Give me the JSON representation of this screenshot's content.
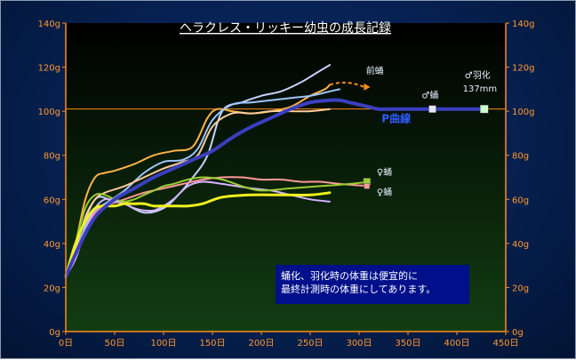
{
  "chart_data": {
    "type": "line",
    "title": "ヘラクレス・リッキー幼虫の成長記録",
    "xlabel": "",
    "ylabel": "",
    "xlim": [
      0,
      450
    ],
    "ylim": [
      0,
      140
    ],
    "x_tick_labels": [
      "0日",
      "50日",
      "100日",
      "150日",
      "200日",
      "250日",
      "300日",
      "350日",
      "400日",
      "450日"
    ],
    "y_tick_labels": [
      "0g",
      "20g",
      "40g",
      "60g",
      "80g",
      "100g",
      "120g",
      "140g"
    ],
    "y_ticks": [
      0,
      20,
      40,
      60,
      80,
      100,
      120,
      140
    ],
    "x_ticks": [
      0,
      50,
      100,
      150,
      200,
      250,
      300,
      350,
      400,
      450
    ],
    "grid": false,
    "reference_line": {
      "y": 101,
      "color": "#ff8c1a"
    },
    "series": [
      {
        "color": "#c8d2ff",
        "width": 2,
        "x": [
          0,
          15,
          30,
          45,
          60,
          80,
          100,
          115,
          130,
          145,
          160,
          180,
          200,
          220,
          240,
          255,
          270
        ],
        "y": [
          25,
          45,
          60,
          60,
          58,
          54,
          56,
          62,
          70,
          80,
          100,
          104,
          107,
          109,
          113,
          117,
          121
        ]
      },
      {
        "color": "#ffb347",
        "width": 2,
        "x": [
          0,
          10,
          20,
          30,
          40,
          50,
          70,
          90,
          110,
          130,
          145,
          155,
          170,
          190,
          210,
          230,
          250,
          265,
          270
        ],
        "y": [
          25,
          40,
          60,
          70,
          72,
          73,
          76,
          80,
          82,
          84,
          97,
          101,
          100,
          99,
          100,
          102,
          107,
          110,
          112
        ]
      },
      {
        "color": "#9ec5ff",
        "width": 2,
        "x": [
          0,
          10,
          20,
          30,
          40,
          60,
          80,
          100,
          120,
          135,
          150,
          170,
          190,
          210,
          230,
          250,
          270,
          280
        ],
        "y": [
          25,
          35,
          48,
          55,
          58,
          64,
          72,
          77,
          78,
          83,
          96,
          103,
          104,
          105,
          106,
          107,
          109,
          110
        ]
      },
      {
        "color": "#ffcc99",
        "width": 2,
        "x": [
          0,
          10,
          20,
          30,
          40,
          60,
          80,
          100,
          120,
          135,
          150,
          170,
          190,
          210,
          230,
          250,
          270
        ],
        "y": [
          25,
          37,
          52,
          60,
          63,
          66,
          70,
          74,
          77,
          80,
          93,
          99,
          99,
          100,
          100,
          100,
          101
        ]
      },
      {
        "color": "#ff9999",
        "width": 2,
        "x": [
          0,
          10,
          20,
          30,
          40,
          60,
          80,
          100,
          120,
          140,
          160,
          180,
          200,
          220,
          240,
          260,
          280,
          310
        ],
        "y": [
          25,
          35,
          46,
          54,
          57,
          60,
          63,
          65,
          67,
          69,
          70,
          70,
          69,
          69,
          68,
          68,
          67,
          66
        ]
      },
      {
        "color": "#d4b3ff",
        "width": 2,
        "x": [
          0,
          10,
          20,
          30,
          40,
          50,
          60,
          70,
          80,
          90,
          100,
          110,
          125,
          140,
          160,
          190,
          210,
          230,
          250,
          270
        ],
        "y": [
          25,
          33,
          46,
          56,
          60,
          59,
          58,
          56,
          55,
          55,
          57,
          60,
          66,
          68,
          67,
          65,
          64,
          62,
          60,
          59
        ]
      },
      {
        "color": "#9acd32",
        "width": 2,
        "x": [
          0,
          10,
          20,
          30,
          40,
          50,
          60,
          70,
          80,
          90,
          100,
          110,
          125,
          140,
          160,
          180,
          200,
          230,
          260,
          290,
          310
        ],
        "y": [
          25,
          40,
          56,
          62,
          62,
          60,
          59,
          60,
          62,
          64,
          66,
          67,
          69,
          70,
          69,
          66,
          64,
          65,
          66,
          67,
          68
        ]
      },
      {
        "color": "#f0f020",
        "width": 3,
        "x": [
          0,
          10,
          20,
          30,
          40,
          50,
          60,
          70,
          80,
          90,
          100,
          110,
          125,
          140,
          160,
          190,
          220,
          250,
          270
        ],
        "y": [
          25,
          40,
          50,
          56,
          57,
          57,
          58,
          58,
          58,
          57,
          57,
          57,
          57,
          58,
          61,
          62,
          62,
          62,
          63
        ]
      },
      {
        "color": "#3b3fbf",
        "width": 4,
        "x": [
          0,
          15,
          30,
          50,
          70,
          90,
          110,
          130,
          150,
          170,
          190,
          210,
          230,
          250,
          270,
          280,
          290,
          300,
          310,
          320,
          340,
          360,
          380,
          400,
          420,
          430
        ],
        "y": [
          25,
          40,
          52,
          60,
          65,
          70,
          74,
          78,
          82,
          88,
          93,
          97,
          101,
          104,
          105,
          105,
          104,
          103,
          102,
          101,
          101,
          101,
          101,
          101,
          101,
          101
        ]
      }
    ],
    "projection_arrow": {
      "color": "#ff8c1a",
      "x": [
        270,
        305
      ],
      "y": [
        112,
        111
      ]
    },
    "markers": [
      {
        "shape": "square",
        "color": "#e6e6ff",
        "x": 375,
        "y": 101,
        "size": 8
      },
      {
        "shape": "square",
        "color": "#ccffcc",
        "x": 428,
        "y": 101,
        "size": 9
      },
      {
        "shape": "square",
        "color": "#9acd32",
        "x": 308,
        "y": 68,
        "size": 8
      },
      {
        "shape": "square",
        "color": "#ff9999",
        "x": 308,
        "y": 66,
        "size": 6
      }
    ],
    "annotations": [
      {
        "id": "ann-prepupa",
        "text": "前蛹",
        "x": 307,
        "y": 117,
        "cls": "ann"
      },
      {
        "id": "ann-male-pupa",
        "text": "♂蛹",
        "x": 364,
        "y": 106,
        "cls": "ann"
      },
      {
        "id": "ann-male-eclosion",
        "text": "♂羽化",
        "x": 408,
        "y": 115,
        "cls": "ann"
      },
      {
        "id": "ann-male-weight",
        "text": "137mm",
        "x": 406,
        "y": 109,
        "cls": "ann"
      },
      {
        "id": "ann-p-curve",
        "text": "P曲線",
        "x": 323,
        "y": 95,
        "cls": "ann-blue"
      },
      {
        "id": "ann-female-pupa-1",
        "text": "♀蛹",
        "x": 318,
        "y": 71,
        "cls": "ann"
      },
      {
        "id": "ann-female-pupa-2",
        "text": "♀蛹",
        "x": 318,
        "y": 62,
        "cls": "ann"
      }
    ]
  },
  "note": {
    "line1": "蛹化、羽化時の体重は便宜的に",
    "line2": "最終計測時の体重にしてあります。"
  }
}
